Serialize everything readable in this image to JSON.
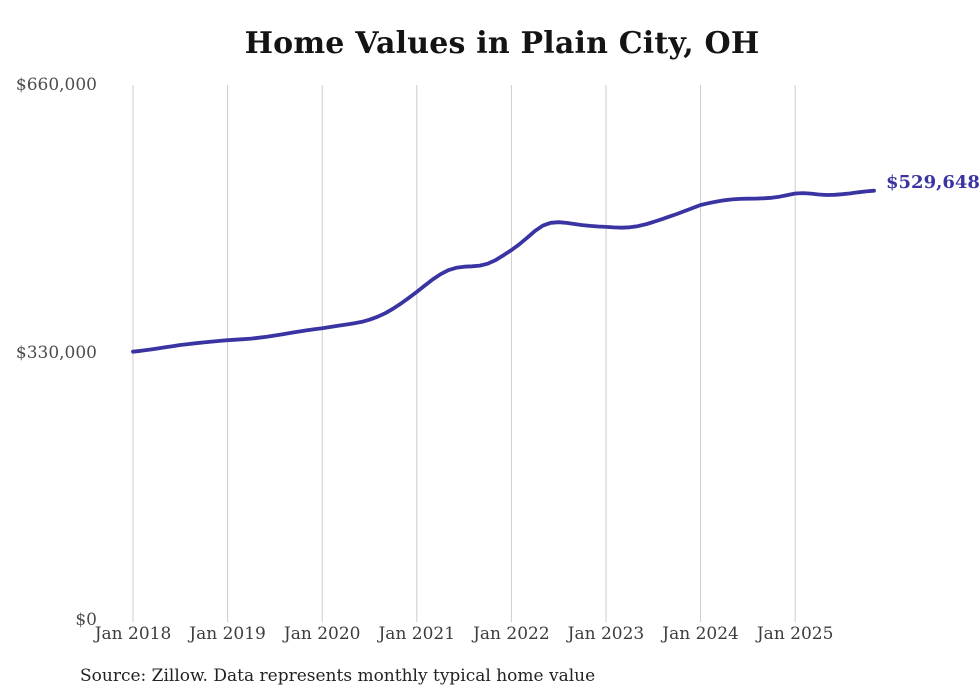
{
  "title": "Home Values in Plain City, OH",
  "end_label": "$529,648",
  "source": "Source: Zillow. Data represents monthly typical home value",
  "colors": {
    "line": "#3a34a3",
    "end_label": "#3a34a3",
    "grid": "#cccccc",
    "title": "#141414",
    "y_tick_text": "#4d4d4d",
    "x_tick_text": "#3d3d3d",
    "source_text": "#222222",
    "background": "#ffffff"
  },
  "chart_data": {
    "type": "line",
    "title": "Home Values in Plain City, OH",
    "series_name": "Monthly typical home value",
    "xlabel": "",
    "ylabel": "",
    "ylim": [
      0,
      660000
    ],
    "grid": "vertical-only",
    "legend": "none",
    "y_tick_values": [
      0,
      330000,
      660000
    ],
    "y_tick_labels": [
      "$0",
      "$330,000",
      "$660,000"
    ],
    "x_tick_labels": [
      "Jan 2018",
      "Jan 2019",
      "Jan 2020",
      "Jan 2021",
      "Jan 2022",
      "Jan 2023",
      "Jan 2024",
      "Jan 2025"
    ],
    "end_label": "$529,648",
    "source": "Source: Zillow. Data represents monthly typical home value",
    "x": [
      "Jan 2018",
      "Feb 2018",
      "Mar 2018",
      "Apr 2018",
      "May 2018",
      "Jun 2018",
      "Jul 2018",
      "Aug 2018",
      "Sep 2018",
      "Oct 2018",
      "Nov 2018",
      "Dec 2018",
      "Jan 2019",
      "Feb 2019",
      "Mar 2019",
      "Apr 2019",
      "May 2019",
      "Jun 2019",
      "Jul 2019",
      "Aug 2019",
      "Sep 2019",
      "Oct 2019",
      "Nov 2019",
      "Dec 2019",
      "Jan 2020",
      "Feb 2020",
      "Mar 2020",
      "Apr 2020",
      "May 2020",
      "Jun 2020",
      "Jul 2020",
      "Aug 2020",
      "Sep 2020",
      "Oct 2020",
      "Nov 2020",
      "Dec 2020",
      "Jan 2021",
      "Feb 2021",
      "Mar 2021",
      "Apr 2021",
      "May 2021",
      "Jun 2021",
      "Jul 2021",
      "Aug 2021",
      "Sep 2021",
      "Oct 2021",
      "Nov 2021",
      "Dec 2021",
      "Jan 2022",
      "Feb 2022",
      "Mar 2022",
      "Apr 2022",
      "May 2022",
      "Jun 2022",
      "Jul 2022",
      "Aug 2022",
      "Sep 2022",
      "Oct 2022",
      "Nov 2022",
      "Dec 2022",
      "Jan 2023",
      "Feb 2023",
      "Mar 2023",
      "Apr 2023",
      "May 2023",
      "Jun 2023",
      "Jul 2023",
      "Aug 2023",
      "Sep 2023",
      "Oct 2023",
      "Nov 2023",
      "Dec 2023",
      "Jan 2024",
      "Feb 2024",
      "Mar 2024",
      "Apr 2024",
      "May 2024",
      "Jun 2024",
      "Jul 2024",
      "Aug 2024",
      "Sep 2024",
      "Oct 2024",
      "Nov 2024",
      "Dec 2024",
      "Jan 2025",
      "Feb 2025",
      "Mar 2025",
      "Apr 2025",
      "May 2025",
      "Jun 2025",
      "Jul 2025",
      "Aug 2025",
      "Sep 2025",
      "Oct 2025",
      "Nov 2025"
    ],
    "values": [
      331000,
      332100,
      333400,
      334800,
      336300,
      337800,
      339200,
      340400,
      341500,
      342500,
      343400,
      344300,
      345200,
      345800,
      346400,
      347200,
      348200,
      349500,
      351000,
      352600,
      354200,
      355800,
      357300,
      358700,
      360000,
      361400,
      362900,
      364400,
      365900,
      367800,
      370500,
      374000,
      378500,
      384000,
      390500,
      397500,
      404800,
      412500,
      420000,
      426500,
      431500,
      434500,
      435800,
      436300,
      437200,
      439500,
      444000,
      450000,
      456300,
      463500,
      471500,
      480000,
      486500,
      490000,
      490800,
      489900,
      488500,
      487200,
      486200,
      485500,
      485000,
      484300,
      484000,
      484400,
      485800,
      488000,
      491000,
      494200,
      497500,
      500800,
      504500,
      508300,
      512000,
      514200,
      516200,
      517800,
      518900,
      519500,
      519700,
      519900,
      520200,
      520800,
      522200,
      524200,
      526200,
      526700,
      526000,
      524900,
      524300,
      524600,
      525300,
      526300,
      527600,
      528700,
      529648
    ]
  }
}
